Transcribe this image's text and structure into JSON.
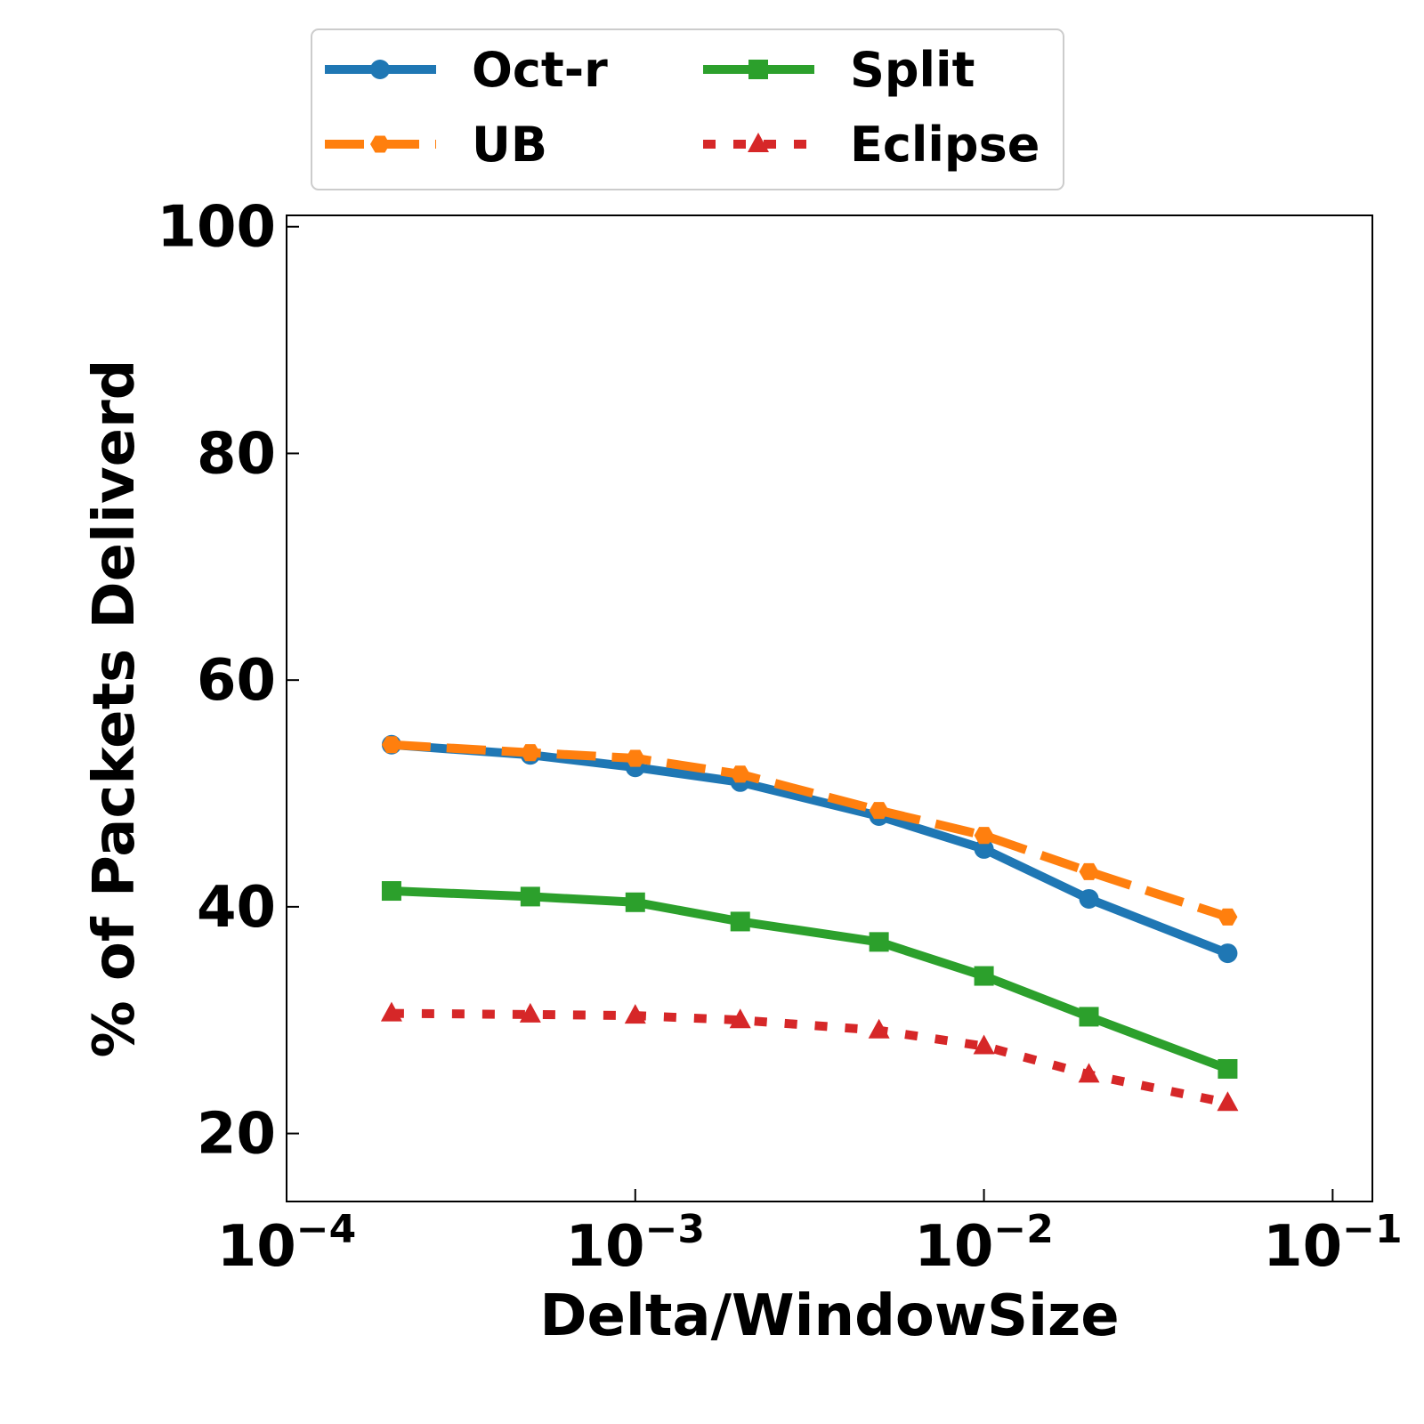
{
  "chart_data": {
    "type": "line",
    "xscale": "log",
    "xlim": [
      0.0001,
      0.13
    ],
    "ylim": [
      14,
      101
    ],
    "xlabel": "Delta/WindowSize",
    "ylabel": "% of Packets Deliverd",
    "xticks": [
      {
        "value": 0.0001,
        "base": "10",
        "exp": "−4"
      },
      {
        "value": 0.001,
        "base": "10",
        "exp": "−3"
      },
      {
        "value": 0.01,
        "base": "10",
        "exp": "−2"
      },
      {
        "value": 0.1,
        "base": "10",
        "exp": "−1"
      }
    ],
    "yticks": [
      20,
      40,
      60,
      80,
      100
    ],
    "grid": false,
    "legend_position": "top-center",
    "x": [
      0.0002,
      0.0005,
      0.001,
      0.002,
      0.005,
      0.01,
      0.02,
      0.05
    ],
    "series": [
      {
        "name": "Oct-r",
        "color": "#1f77b4",
        "linestyle": "solid",
        "marker": "circle",
        "values": [
          54.3,
          53.4,
          52.3,
          51.0,
          48.0,
          45.1,
          40.7,
          35.9
        ]
      },
      {
        "name": "UB",
        "color": "#ff7f0e",
        "linestyle": "dashed",
        "marker": "hexagon",
        "values": [
          54.3,
          53.6,
          53.1,
          51.7,
          48.5,
          46.3,
          43.1,
          39.1
        ]
      },
      {
        "name": "Split",
        "color": "#2ca02c",
        "linestyle": "solid",
        "marker": "square",
        "values": [
          41.4,
          40.9,
          40.4,
          38.7,
          36.9,
          33.9,
          30.3,
          25.7
        ]
      },
      {
        "name": "Eclipse",
        "color": "#d62728",
        "linestyle": "dotted",
        "marker": "triangle",
        "values": [
          30.6,
          30.5,
          30.4,
          30.0,
          29.1,
          27.7,
          25.2,
          22.7
        ]
      }
    ]
  }
}
